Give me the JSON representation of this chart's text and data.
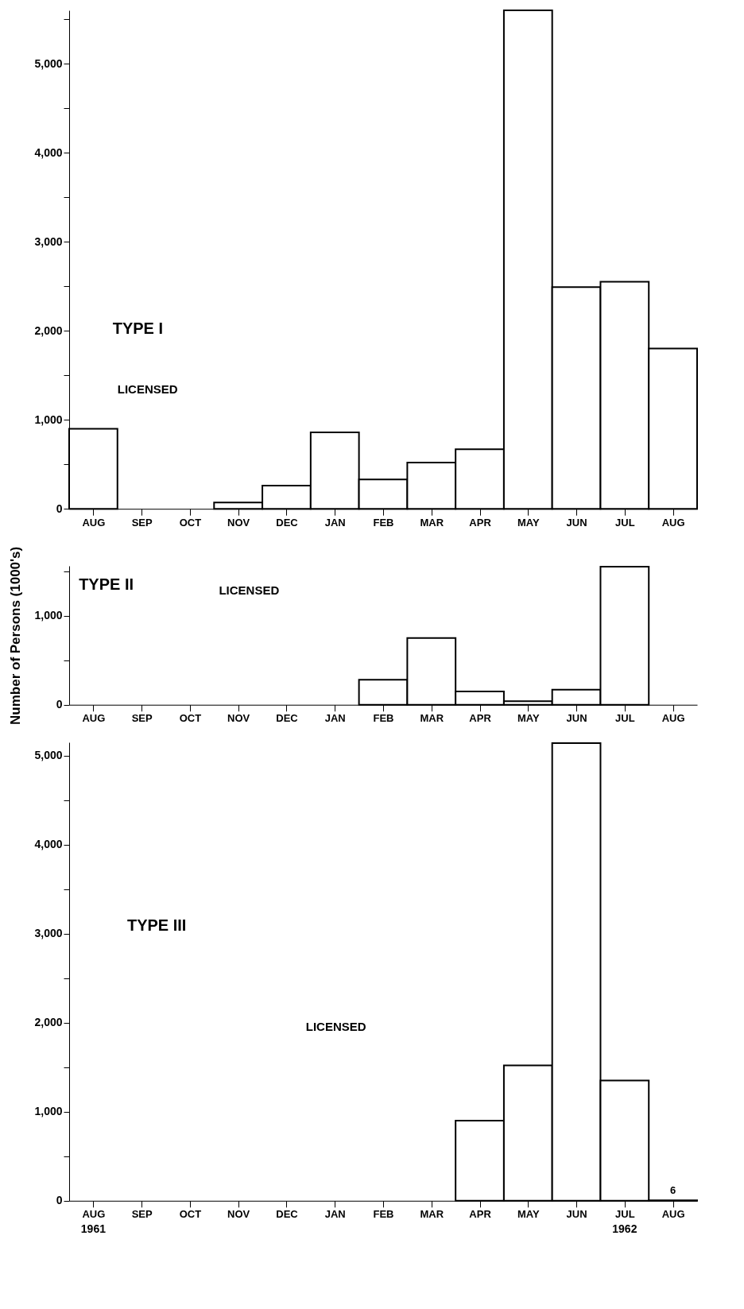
{
  "chart_data": [
    {
      "type": "bar",
      "title": "TYPE I",
      "categories": [
        "AUG",
        "SEP",
        "OCT",
        "NOV",
        "DEC",
        "JAN",
        "FEB",
        "MAR",
        "APR",
        "MAY",
        "JUN",
        "JUL",
        "AUG"
      ],
      "values": [
        900,
        null,
        null,
        70,
        260,
        860,
        330,
        520,
        670,
        5600,
        2490,
        2550,
        1800
      ],
      "color": "#ffffff",
      "ylim": [
        0,
        5600
      ],
      "yticks": [
        0,
        {
          "value": 500,
          "label": null
        },
        {
          "value": 1000,
          "label": "1,000"
        },
        {
          "value": 1500,
          "label": null
        },
        {
          "value": 2000,
          "label": "2,000"
        },
        {
          "value": 2500,
          "label": null
        },
        {
          "value": 3000,
          "label": "3,000"
        },
        {
          "value": 3500,
          "label": null
        },
        {
          "value": 4000,
          "label": "4,000"
        },
        {
          "value": 4500,
          "label": null
        },
        {
          "value": 5000,
          "label": "5,000"
        },
        {
          "value": 5500,
          "label": null
        }
      ],
      "annotations": [
        "LICENSED"
      ]
    },
    {
      "type": "bar",
      "title": "TYPE II",
      "ylabel": "Number of Persons (1000's)",
      "categories": [
        "AUG",
        "SEP",
        "OCT",
        "NOV",
        "DEC",
        "JAN",
        "FEB",
        "MAR",
        "APR",
        "MAY",
        "JUN",
        "JUL",
        "AUG"
      ],
      "values": [
        null,
        null,
        null,
        null,
        null,
        null,
        280,
        750,
        150,
        40,
        170,
        1550,
        null
      ],
      "color": "#ffffff",
      "ylim": [
        0,
        1560
      ],
      "yticks": [
        0,
        {
          "value": 500,
          "label": null
        },
        {
          "value": 1000,
          "label": "1,000"
        },
        {
          "value": 1500,
          "label": null
        }
      ],
      "annotations": [
        "LICENSED"
      ]
    },
    {
      "type": "bar",
      "title": "TYPE III",
      "categories": [
        "AUG",
        "SEP",
        "OCT",
        "NOV",
        "DEC",
        "JAN",
        "FEB",
        "MAR",
        "APR",
        "MAY",
        "JUN",
        "JUL",
        "AUG"
      ],
      "values": [
        null,
        null,
        null,
        null,
        null,
        null,
        null,
        null,
        900,
        1520,
        5140,
        1350,
        6
      ],
      "color": "#ffffff",
      "value_labels": [
        null,
        null,
        null,
        null,
        null,
        null,
        null,
        null,
        null,
        null,
        null,
        null,
        "6"
      ],
      "ylim": [
        0,
        5150
      ],
      "yticks": [
        0,
        {
          "value": 500,
          "label": null
        },
        {
          "value": 1000,
          "label": "1,000"
        },
        {
          "value": 1500,
          "label": null
        },
        {
          "value": 2000,
          "label": "2,000"
        },
        {
          "value": 2500,
          "label": null
        },
        {
          "value": 3000,
          "label": "3,000"
        },
        {
          "value": 3500,
          "label": null
        },
        {
          "value": 4000,
          "label": "4,000"
        },
        {
          "value": 4500,
          "label": null
        },
        {
          "value": 5000,
          "label": "5,000"
        }
      ],
      "annotations": [
        "LICENSED",
        "1961",
        "1962"
      ]
    }
  ]
}
